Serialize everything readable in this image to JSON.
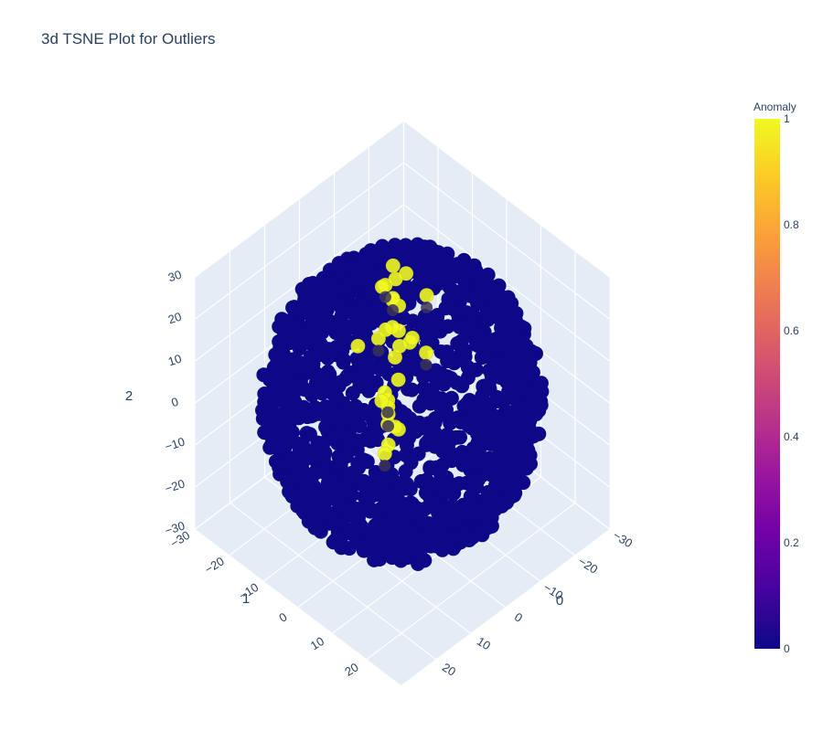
{
  "chart_data": {
    "type": "scatter",
    "title": "3d TSNE Plot for Outliers",
    "axes": {
      "x": {
        "title": "0",
        "range": [
          -30,
          30
        ],
        "ticks": [
          -30,
          -20,
          -10,
          0,
          10,
          20
        ]
      },
      "y": {
        "title": "1",
        "range": [
          -30,
          30
        ],
        "ticks": [
          -30,
          -20,
          -10,
          0,
          10,
          20
        ]
      },
      "z": {
        "title": "2",
        "range": [
          -30,
          30
        ],
        "ticks": [
          -30,
          -20,
          -10,
          0,
          10,
          20,
          30
        ]
      }
    },
    "grid": true,
    "colorbar": {
      "title": "Anomaly",
      "range": [
        0,
        1
      ],
      "ticks": [
        "0",
        "0.2",
        "0.4",
        "0.6",
        "0.8",
        "1"
      ],
      "colorscale": [
        "#0d0887",
        "#46039f",
        "#7201a8",
        "#9c179e",
        "#bd3786",
        "#d8576b",
        "#ed7953",
        "#fb9f3a",
        "#fdca26",
        "#f0f921"
      ]
    },
    "series": [
      {
        "values": "Anomaly = 0, dense spherical cloud of points (radius about 30)",
        "color": "#0d0887"
      },
      {
        "color": "#f0f921",
        "points": [
          [
            -4,
            -9,
            20
          ],
          [
            -6,
            -5,
            24
          ],
          [
            -1,
            -3,
            27
          ],
          [
            2,
            1,
            25
          ],
          [
            -8,
            -1,
            20
          ],
          [
            6,
            5,
            24
          ],
          [
            10,
            8,
            22
          ],
          [
            13,
            12,
            21
          ],
          [
            16,
            12,
            18
          ],
          [
            19,
            15,
            16
          ],
          [
            14,
            10,
            14
          ],
          [
            11,
            6,
            13
          ],
          [
            9,
            5,
            6
          ],
          [
            8,
            7,
            3
          ],
          [
            4,
            2,
            -2
          ],
          [
            6,
            2,
            -5
          ],
          [
            9,
            4,
            -4
          ],
          [
            1,
            -5,
            -2
          ],
          [
            -9,
            -12,
            5
          ],
          [
            -15,
            -18,
            4
          ],
          [
            -17,
            -20,
            2
          ],
          [
            -14,
            -19,
            -3
          ],
          [
            -12,
            -13,
            -2
          ],
          [
            -11,
            -9,
            2
          ],
          [
            -4,
            -11,
            6
          ],
          [
            -2,
            -15,
            3
          ],
          [
            -8,
            -14,
            14
          ],
          [
            -20,
            -23,
            6
          ],
          [
            3,
            10,
            20
          ],
          [
            7,
            10,
            26
          ]
        ]
      }
    ]
  }
}
